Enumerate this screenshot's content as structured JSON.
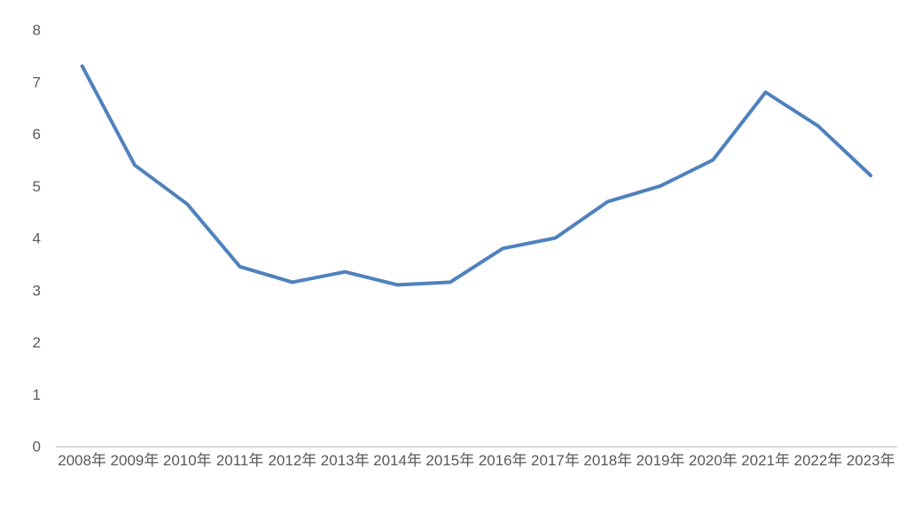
{
  "chart_data": {
    "type": "line",
    "title": "",
    "xlabel": "",
    "ylabel": "",
    "categories": [
      "2008年",
      "2009年",
      "2010年",
      "2011年",
      "2012年",
      "2013年",
      "2014年",
      "2015年",
      "2016年",
      "2017年",
      "2018年",
      "2019年",
      "2020年",
      "2021年",
      "2022年",
      "2023年"
    ],
    "series": [
      {
        "name": "",
        "values": [
          7.3,
          5.4,
          4.65,
          3.45,
          3.15,
          3.35,
          3.1,
          3.15,
          3.8,
          4.0,
          4.7,
          5.0,
          5.5,
          6.8,
          6.15,
          5.2
        ]
      }
    ],
    "ylim": [
      0,
      8
    ],
    "yticks": [
      0,
      1,
      2,
      3,
      4,
      5,
      6,
      7,
      8
    ],
    "grid": false,
    "legend": false,
    "colors": {
      "line": "#4f81bd",
      "axis_line": "#d9d9d9",
      "tick_label": "#595959",
      "background": "#ffffff"
    }
  }
}
